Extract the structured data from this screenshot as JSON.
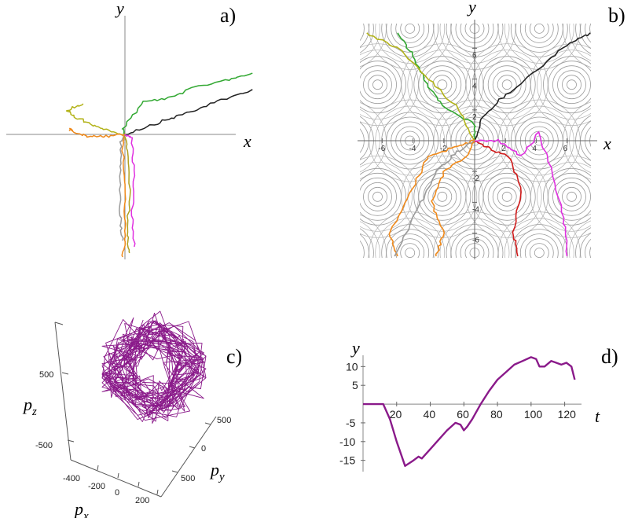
{
  "chart_data": [
    {
      "type": "line",
      "panel_label": "a)",
      "xlabel": "x",
      "ylabel": "y",
      "series": [
        {
          "color": "#32a832",
          "points": [
            [
              0,
              0
            ],
            [
              -1,
              3
            ],
            [
              8,
              16
            ],
            [
              20,
              18
            ],
            [
              30,
              23
            ],
            [
              45,
              27
            ],
            [
              55,
              30
            ]
          ]
        },
        {
          "color": "#222222",
          "points": [
            [
              0,
              0
            ],
            [
              10,
              4
            ],
            [
              20,
              8
            ],
            [
              28,
              11
            ],
            [
              40,
              16
            ],
            [
              55,
              22
            ]
          ]
        },
        {
          "color": "#b3b31a",
          "points": [
            [
              0,
              0
            ],
            [
              -8,
              2
            ],
            [
              -15,
              5
            ],
            [
              -22,
              9
            ],
            [
              -25,
              12
            ],
            [
              -18,
              15
            ]
          ]
        },
        {
          "color": "#ef8a1c",
          "points": [
            [
              0,
              0
            ],
            [
              -8,
              -1
            ],
            [
              -15,
              -1
            ],
            [
              -22,
              1
            ],
            [
              -24,
              3
            ]
          ]
        },
        {
          "color": "#9a9a9a",
          "points": [
            [
              0,
              0
            ],
            [
              -2,
              -4
            ],
            [
              -2,
              -20
            ],
            [
              -2,
              -40
            ],
            [
              -1,
              -52
            ]
          ]
        },
        {
          "color": "#ef8a1c",
          "points": [
            [
              0,
              0
            ],
            [
              -1,
              -6
            ],
            [
              0,
              -25
            ],
            [
              0,
              -50
            ],
            [
              -1,
              -60
            ]
          ]
        },
        {
          "color": "#b0a020",
          "points": [
            [
              0,
              0
            ],
            [
              1,
              -8
            ],
            [
              2,
              -30
            ],
            [
              1,
              -50
            ],
            [
              2,
              -58
            ]
          ]
        },
        {
          "color": "#e030e0",
          "points": [
            [
              0,
              0
            ],
            [
              3,
              -2
            ],
            [
              4,
              -20
            ],
            [
              3,
              -40
            ],
            [
              4,
              -55
            ]
          ]
        }
      ]
    },
    {
      "type": "line",
      "panel_label": "b)",
      "xlabel": "x",
      "ylabel": "y",
      "x_ticks": [
        "-6",
        "-4",
        "-2",
        "2",
        "4",
        "6"
      ],
      "y_ticks": [
        "6",
        "4",
        "2",
        "-2",
        "-4",
        "-6"
      ],
      "xlim": [
        -7.5,
        7.5
      ],
      "ylim": [
        -7.5,
        7.5
      ],
      "background": "contour lines of a periodic hexagonal potential",
      "series": [
        {
          "color": "#32a832",
          "points": [
            [
              0,
              0
            ],
            [
              0,
              1
            ],
            [
              -2,
              2.2
            ],
            [
              -3,
              3.5
            ],
            [
              -4,
              5.5
            ],
            [
              -5,
              7
            ]
          ]
        },
        {
          "color": "#222222",
          "points": [
            [
              0,
              0
            ],
            [
              0.5,
              1.5
            ],
            [
              2,
              3
            ],
            [
              4,
              4.5
            ],
            [
              6,
              6.2
            ],
            [
              7.5,
              7
            ]
          ]
        },
        {
          "color": "#b3b31a",
          "points": [
            [
              0,
              0
            ],
            [
              -1,
              2
            ],
            [
              -3,
              4
            ],
            [
              -5,
              6
            ],
            [
              -7,
              7
            ]
          ]
        },
        {
          "color": "#ef8a1c",
          "points": [
            [
              0,
              0
            ],
            [
              -1.5,
              -0.5
            ],
            [
              -3,
              -1
            ],
            [
              -4,
              -3
            ],
            [
              -5.5,
              -6
            ],
            [
              -5,
              -7.5
            ]
          ]
        },
        {
          "color": "#9a9a9a",
          "points": [
            [
              0,
              0
            ],
            [
              -1.5,
              -1
            ],
            [
              -2.5,
              -2
            ],
            [
              -3.5,
              -4
            ],
            [
              -5.2,
              -7.5
            ]
          ]
        },
        {
          "color": "#ef8a1c",
          "points": [
            [
              0,
              0
            ],
            [
              -0.5,
              -1
            ],
            [
              -2,
              -2
            ],
            [
              -2.8,
              -4
            ],
            [
              -2,
              -6
            ],
            [
              -2.5,
              -7.5
            ]
          ]
        },
        {
          "color": "#d01c1c",
          "points": [
            [
              0,
              0
            ],
            [
              1,
              -0.5
            ],
            [
              2.2,
              -1
            ],
            [
              3,
              -3
            ],
            [
              2.5,
              -6
            ],
            [
              2.8,
              -7.5
            ]
          ]
        },
        {
          "color": "#e030e0",
          "points": [
            [
              0,
              0
            ],
            [
              1.5,
              0
            ],
            [
              3,
              -1
            ],
            [
              4.2,
              0.5
            ],
            [
              5,
              -2
            ],
            [
              5.8,
              -5
            ],
            [
              6,
              -7.5
            ]
          ]
        }
      ]
    },
    {
      "type": "line",
      "panel_label": "c)",
      "xlabel": "p_x",
      "ylabel": "p_y",
      "zlabel": "p_z",
      "color": "#8a1a8a",
      "px_ticks": [
        "-400",
        "-200",
        "0",
        "200"
      ],
      "py_ticks": [
        "500",
        "0",
        "500"
      ],
      "pz_ticks": [
        "500",
        "-500"
      ],
      "description": "3D momentum trajectory, tangled loops"
    },
    {
      "type": "line",
      "panel_label": "d)",
      "xlabel": "t",
      "ylabel": "y",
      "color": "#8a1a8a",
      "xlim": [
        0,
        130
      ],
      "ylim": [
        -18,
        13
      ],
      "x_ticks": [
        20,
        40,
        60,
        80,
        100,
        120
      ],
      "y_ticks": [
        10,
        5,
        -5,
        -10,
        -15
      ],
      "x": [
        0,
        8,
        12,
        16,
        20,
        25,
        30,
        33,
        35,
        40,
        45,
        50,
        55,
        58,
        60,
        62,
        65,
        70,
        75,
        80,
        85,
        90,
        95,
        100,
        103,
        105,
        108,
        112,
        115,
        118,
        121,
        124,
        126
      ],
      "y": [
        0,
        0,
        0,
        -4,
        -10,
        -16.5,
        -15,
        -14,
        -14.5,
        -12,
        -9.5,
        -7,
        -5,
        -5.5,
        -7,
        -6,
        -4,
        0,
        3.5,
        6.5,
        8.5,
        10.5,
        11.5,
        12.5,
        12,
        10,
        10,
        11.5,
        11,
        10.5,
        11,
        10,
        6.5
      ]
    }
  ]
}
